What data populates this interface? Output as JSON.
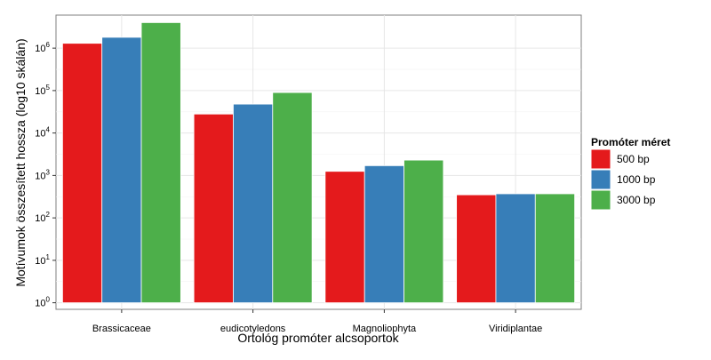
{
  "chart_data": {
    "type": "bar",
    "categories": [
      "Brassicaceae",
      "eudicotyledons",
      "Magnoliophyta",
      "Viridiplantae"
    ],
    "series": [
      {
        "name": "500 bp",
        "color": "#E41A1C",
        "values": [
          1300000,
          28000,
          1250,
          350
        ]
      },
      {
        "name": "1000 bp",
        "color": "#377EB8",
        "values": [
          1800000,
          48000,
          1700,
          370
        ]
      },
      {
        "name": "3000 bp",
        "color": "#4DAF4A",
        "values": [
          4000000,
          90000,
          2300,
          370
        ]
      }
    ],
    "xlabel": "Ortológ promóter alcsoportok",
    "ylabel": "Motívumok összesített hossza (log10 skálán)",
    "y_scale": "log10",
    "ylim": [
      0.7,
      6000000
    ],
    "y_ticks": [
      {
        "base": "10",
        "exp": "0"
      },
      {
        "base": "10",
        "exp": "1"
      },
      {
        "base": "10",
        "exp": "2"
      },
      {
        "base": "10",
        "exp": "3"
      },
      {
        "base": "10",
        "exp": "4"
      },
      {
        "base": "10",
        "exp": "5"
      },
      {
        "base": "10",
        "exp": "6"
      }
    ],
    "legend": {
      "title": "Promóter méret",
      "position": "right"
    },
    "grid": true
  }
}
